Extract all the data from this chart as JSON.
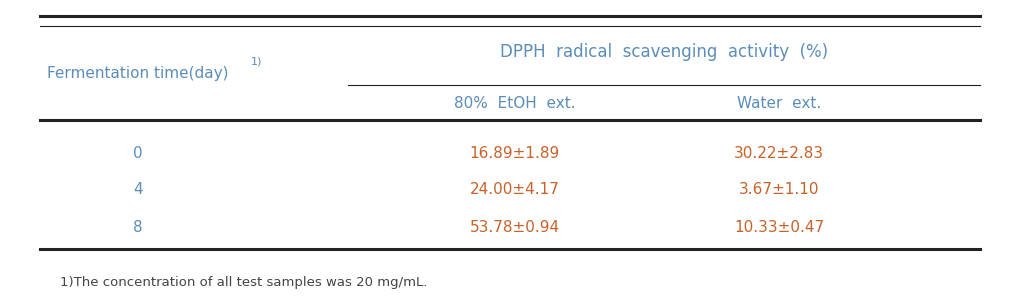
{
  "title": "DPPH  radical  scavenging  activity  (%)",
  "col1_header": "Fermentation time(day)",
  "col1_superscript": "1)",
  "col2_header": "80%  EtOH  ext.",
  "col3_header": "Water  ext.",
  "rows": [
    {
      "day": "0",
      "etoh": "16.89±1.89",
      "water": "30.22±2.83"
    },
    {
      "day": "4",
      "etoh": "24.00±4.17",
      "water": "3.67±1.10"
    },
    {
      "day": "8",
      "etoh": "53.78±0.94",
      "water": "10.33±0.47"
    }
  ],
  "footnote": "1)The concentration of all test samples was 20 mg/mL.",
  "header_color": "#5b8db8",
  "data_color": "#c8622a",
  "col1_color": "#5b8db8",
  "footnote_color": "#444444",
  "bg_color": "#ffffff",
  "line_color": "#222222",
  "font_size": 11,
  "title_font_size": 12
}
